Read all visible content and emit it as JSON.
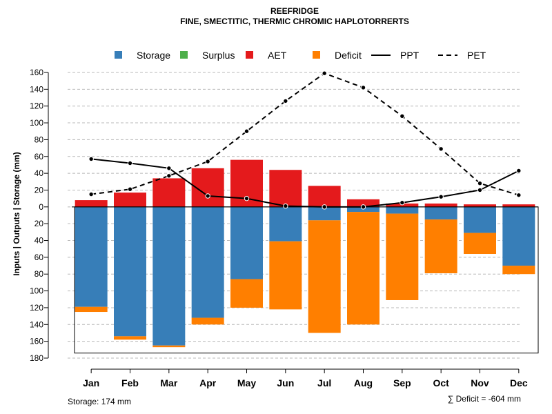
{
  "chart_data": {
    "type": "bar",
    "title": "REEFRIDGE",
    "subtitle": "FINE, SMECTITIC, THERMIC CHROMIC HAPLOTORRERTS",
    "ylabel": "Inputs | Outputs | Storage    (mm)",
    "xlabel": "",
    "ylim": [
      -180,
      160
    ],
    "grid": true,
    "categories": [
      "Jan",
      "Feb",
      "Mar",
      "Apr",
      "May",
      "Jun",
      "Jul",
      "Aug",
      "Sep",
      "Oct",
      "Nov",
      "Dec"
    ],
    "yticks": [
      {
        "value": 160,
        "label": "160"
      },
      {
        "value": 140,
        "label": "140"
      },
      {
        "value": 120,
        "label": "120"
      },
      {
        "value": 100,
        "label": "100"
      },
      {
        "value": 80,
        "label": "80"
      },
      {
        "value": 60,
        "label": "60"
      },
      {
        "value": 40,
        "label": "40"
      },
      {
        "value": 20,
        "label": "20"
      },
      {
        "value": 0,
        "label": "0"
      },
      {
        "value": -20,
        "label": "20"
      },
      {
        "value": -40,
        "label": "40"
      },
      {
        "value": -60,
        "label": "60"
      },
      {
        "value": -80,
        "label": "80"
      },
      {
        "value": -100,
        "label": "100"
      },
      {
        "value": -120,
        "label": "120"
      },
      {
        "value": -140,
        "label": "140"
      },
      {
        "value": -160,
        "label": "160"
      },
      {
        "value": -180,
        "label": "180"
      }
    ],
    "series": [
      {
        "name": "AET",
        "color": "#E41A1C",
        "values": [
          8,
          17,
          34,
          46,
          56,
          44,
          25,
          9,
          4,
          4,
          3,
          3
        ]
      },
      {
        "name": "Storage",
        "color": "#377EB8",
        "values": [
          -119,
          -154,
          -165,
          -132,
          -86,
          -41,
          -16,
          -6,
          -8,
          -15,
          -31,
          -70
        ]
      },
      {
        "name": "Deficit",
        "color": "#FF7F00",
        "values": [
          -6,
          -4,
          -2,
          -8,
          -34,
          -81,
          -134,
          -134,
          -103,
          -64,
          -25,
          -10
        ]
      },
      {
        "name": "Surplus",
        "color": "#4DAF4A",
        "values": [
          0,
          0,
          0,
          0,
          0,
          0,
          0,
          0,
          0,
          0,
          0,
          0
        ]
      },
      {
        "name": "PPT",
        "color": "#000000",
        "style": "solid",
        "values": [
          57,
          52,
          46,
          13,
          10,
          1,
          0,
          0,
          5,
          12,
          20,
          43
        ]
      },
      {
        "name": "PET",
        "color": "#000000",
        "style": "dashed",
        "values": [
          15,
          21,
          37,
          54,
          90,
          126,
          159,
          142,
          108,
          69,
          28,
          14
        ]
      }
    ],
    "storage_capacity": 174,
    "legend": [
      {
        "name": "Storage",
        "kind": "box",
        "color": "#377EB8"
      },
      {
        "name": "Surplus",
        "kind": "box",
        "color": "#4DAF4A"
      },
      {
        "name": "AET",
        "kind": "box",
        "color": "#E41A1C"
      },
      {
        "name": "Deficit",
        "kind": "box",
        "color": "#FF7F00"
      },
      {
        "name": "PPT",
        "kind": "line",
        "style": "solid"
      },
      {
        "name": "PET",
        "kind": "line",
        "style": "dashed"
      }
    ],
    "legend_position": "top",
    "notes": {
      "storage": "Storage: 174 mm",
      "deficit": "∑ Deficit = -604 mm"
    }
  }
}
